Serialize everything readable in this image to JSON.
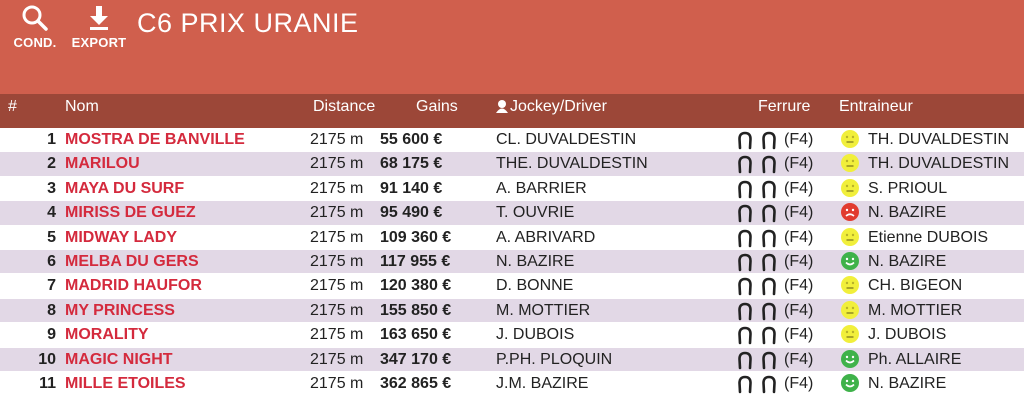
{
  "toolbar": {
    "cond_label": "COND.",
    "export_label": "EXPORT",
    "cond_icon": "search-icon",
    "export_icon": "download-icon"
  },
  "title": "C6 PRIX URANIE",
  "columns": {
    "num": "#",
    "nom": "Nom",
    "distance": "Distance",
    "gains": "Gains",
    "jockey": "Jockey/Driver",
    "ferrure": "Ferrure",
    "entraineur": "Entraineur"
  },
  "colors": {
    "header": "#d05f4d",
    "column_header": "#9c4738",
    "horse_name": "#d42a3d",
    "row_alt": "#e2d8e6",
    "face_yellow": "#f1ef3b",
    "face_red": "#e13b2f",
    "face_green": "#3fb24a"
  },
  "rows": [
    {
      "num": "1",
      "nom": "MOSTRA DE BANVILLE",
      "distance": "2175 m",
      "gains": "55 600 €",
      "jockey": "CL. DUVALDESTIN",
      "ferrure": "(F4)",
      "mood": "yellow",
      "entraineur": "TH. DUVALDESTIN"
    },
    {
      "num": "2",
      "nom": "MARILOU",
      "distance": "2175 m",
      "gains": "68 175 €",
      "jockey": "THE. DUVALDESTIN",
      "ferrure": "(F4)",
      "mood": "yellow",
      "entraineur": "TH. DUVALDESTIN"
    },
    {
      "num": "3",
      "nom": "MAYA DU SURF",
      "distance": "2175 m",
      "gains": "91 140 €",
      "jockey": "A. BARRIER",
      "ferrure": "(F4)",
      "mood": "yellow",
      "entraineur": "S. PRIOUL"
    },
    {
      "num": "4",
      "nom": "MIRISS DE GUEZ",
      "distance": "2175 m",
      "gains": "95 490 €",
      "jockey": "T. OUVRIE",
      "ferrure": "(F4)",
      "mood": "red",
      "entraineur": "N. BAZIRE"
    },
    {
      "num": "5",
      "nom": "MIDWAY LADY",
      "distance": "2175 m",
      "gains": "109 360 €",
      "jockey": "A. ABRIVARD",
      "ferrure": "(F4)",
      "mood": "yellow",
      "entraineur": "Etienne DUBOIS"
    },
    {
      "num": "6",
      "nom": "MELBA DU GERS",
      "distance": "2175 m",
      "gains": "117 955 €",
      "jockey": "N. BAZIRE",
      "ferrure": "(F4)",
      "mood": "green",
      "entraineur": "N. BAZIRE"
    },
    {
      "num": "7",
      "nom": "MADRID HAUFOR",
      "distance": "2175 m",
      "gains": "120 380 €",
      "jockey": "D. BONNE",
      "ferrure": "(F4)",
      "mood": "yellow",
      "entraineur": "CH. BIGEON"
    },
    {
      "num": "8",
      "nom": "MY PRINCESS",
      "distance": "2175 m",
      "gains": "155 850 €",
      "jockey": "M. MOTTIER",
      "ferrure": "(F4)",
      "mood": "yellow",
      "entraineur": "M. MOTTIER"
    },
    {
      "num": "9",
      "nom": "MORALITY",
      "distance": "2175 m",
      "gains": "163 650 €",
      "jockey": "J. DUBOIS",
      "ferrure": "(F4)",
      "mood": "yellow",
      "entraineur": "J. DUBOIS"
    },
    {
      "num": "10",
      "nom": "MAGIC NIGHT",
      "distance": "2175 m",
      "gains": "347 170 €",
      "jockey": "P.PH. PLOQUIN",
      "ferrure": "(F4)",
      "mood": "green",
      "entraineur": "Ph. ALLAIRE"
    },
    {
      "num": "11",
      "nom": "MILLE ETOILES",
      "distance": "2175 m",
      "gains": "362 865 €",
      "jockey": "J.M. BAZIRE",
      "ferrure": "(F4)",
      "mood": "green",
      "entraineur": "N. BAZIRE"
    }
  ]
}
